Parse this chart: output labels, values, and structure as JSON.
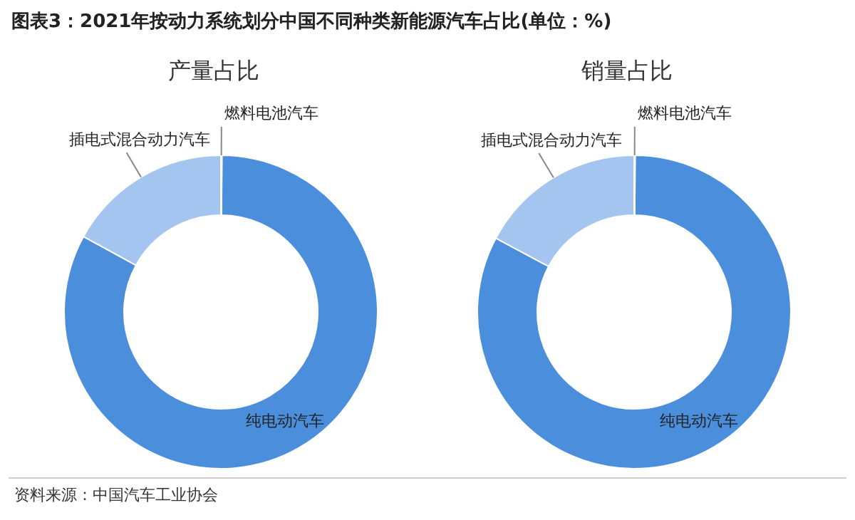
{
  "chart_data": [
    {
      "type": "donut",
      "title": "图表3：2021年按动力系统划分中国不同种类新能源汽车占比(单位：%)",
      "subtitle": "产量占比",
      "categories": [
        "纯电动汽车",
        "插电式混合动力汽车",
        "燃料电池汽车"
      ],
      "values": [
        82.9,
        17.0,
        0.1
      ],
      "colors": [
        "#4a8edc",
        "#a3c5f0",
        "#4a8edc"
      ],
      "annotations": [
        "资料来源：中国汽车工业协会"
      ]
    },
    {
      "type": "donut",
      "subtitle": "销量占比",
      "categories": [
        "纯电动汽车",
        "插电式混合动力汽车",
        "燃料电池汽车"
      ],
      "values": [
        82.7,
        17.2,
        0.1
      ],
      "colors": [
        "#4a8edc",
        "#a3c5f0",
        "#4a8edc"
      ]
    }
  ]
}
